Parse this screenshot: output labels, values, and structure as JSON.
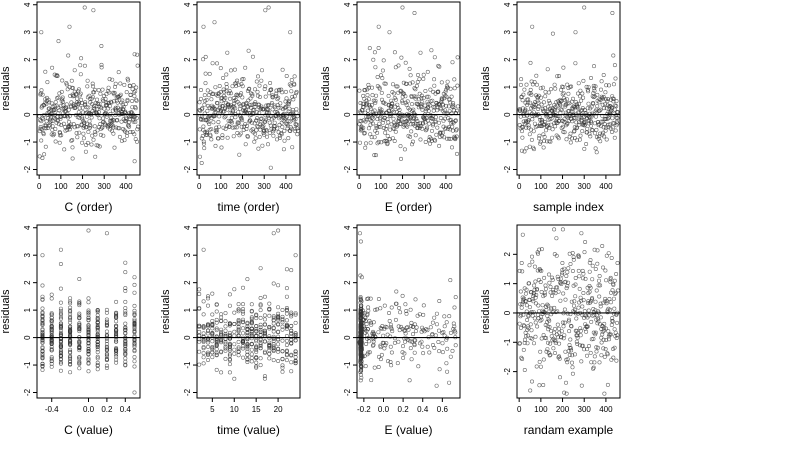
{
  "colors": {
    "points": "#333333",
    "frame": "#000000",
    "background": "#ffffff"
  },
  "chart_data": [
    {
      "type": "scatter",
      "xlabel": "C (order)",
      "ylabel": "residuals",
      "x_kind": "order",
      "xlim": [
        -10,
        465
      ],
      "ylim": [
        -2.2,
        4.1
      ],
      "xticks": [
        0,
        100,
        200,
        300,
        400
      ],
      "yticks": [
        -2,
        -1,
        0,
        1,
        2,
        3,
        4
      ],
      "hline": 0,
      "n_points": 460,
      "outliers": [
        [
          10,
          3.0
        ],
        [
          140,
          3.2
        ],
        [
          210,
          3.9
        ],
        [
          250,
          3.8
        ],
        [
          440,
          2.2
        ],
        [
          440,
          -1.7
        ]
      ]
    },
    {
      "type": "scatter",
      "xlabel": "time (order)",
      "ylabel": "residuals",
      "x_kind": "order",
      "xlim": [
        -10,
        465
      ],
      "ylim": [
        -2.2,
        4.1
      ],
      "xticks": [
        0,
        100,
        200,
        300,
        400
      ],
      "yticks": [
        -2,
        -1,
        0,
        1,
        2,
        3,
        4
      ],
      "hline": 0,
      "n_points": 460,
      "outliers": [
        [
          20,
          3.2
        ],
        [
          305,
          3.8
        ],
        [
          320,
          3.9
        ],
        [
          420,
          3.0
        ],
        [
          30,
          2.1
        ]
      ]
    },
    {
      "type": "scatter",
      "xlabel": "E (order)",
      "ylabel": "residuals",
      "x_kind": "order",
      "xlim": [
        -10,
        465
      ],
      "ylim": [
        -2.2,
        4.1
      ],
      "xticks": [
        0,
        100,
        200,
        300,
        400
      ],
      "yticks": [
        -2,
        -1,
        0,
        1,
        2,
        3,
        4
      ],
      "hline": 0,
      "n_points": 460,
      "outliers": [
        [
          90,
          3.2
        ],
        [
          200,
          3.9
        ],
        [
          255,
          3.7
        ],
        [
          140,
          3.0
        ]
      ]
    },
    {
      "type": "scatter",
      "xlabel": "sample index",
      "ylabel": "residuals",
      "x_kind": "order",
      "xlim": [
        -10,
        465
      ],
      "ylim": [
        -2.2,
        4.1
      ],
      "xticks": [
        0,
        100,
        200,
        300,
        400
      ],
      "yticks": [
        -2,
        -1,
        0,
        1,
        2,
        3,
        4
      ],
      "hline": 0,
      "n_points": 460,
      "outliers": [
        [
          60,
          3.2
        ],
        [
          300,
          3.9
        ],
        [
          430,
          3.7
        ],
        [
          260,
          3.0
        ]
      ]
    },
    {
      "type": "scatter",
      "xlabel": "C (value)",
      "ylabel": "residuals",
      "x_kind": "discrete",
      "xlim": [
        -0.56,
        0.56
      ],
      "ylim": [
        -2.2,
        4.1
      ],
      "xticks": [
        -0.4,
        0.0,
        0.2,
        0.4
      ],
      "yticks": [
        -2,
        -1,
        0,
        1,
        2,
        3,
        4
      ],
      "hline": 0,
      "n_points": 460,
      "discrete_x": [
        -0.5,
        -0.4,
        -0.3,
        -0.2,
        -0.1,
        0.0,
        0.1,
        0.2,
        0.3,
        0.4,
        0.5
      ],
      "outliers": [
        [
          -0.5,
          3.0
        ],
        [
          -0.3,
          3.2
        ],
        [
          0.0,
          3.9
        ],
        [
          0.2,
          3.8
        ],
        [
          0.5,
          2.2
        ],
        [
          0.5,
          -2.0
        ]
      ]
    },
    {
      "type": "scatter",
      "xlabel": "time (value)",
      "ylabel": "residuals",
      "x_kind": "discrete",
      "xlim": [
        1.5,
        25
      ],
      "ylim": [
        -2.2,
        4.1
      ],
      "xticks": [
        5,
        10,
        15,
        20
      ],
      "yticks": [
        -2,
        -1,
        0,
        1,
        2,
        3,
        4
      ],
      "hline": 0,
      "n_points": 460,
      "discrete_x": [
        2,
        3,
        4,
        5,
        6,
        7,
        8,
        9,
        10,
        11,
        12,
        13,
        14,
        15,
        16,
        17,
        18,
        19,
        20,
        21,
        22,
        23,
        24
      ],
      "outliers": [
        [
          3,
          3.2
        ],
        [
          19,
          3.8
        ],
        [
          20,
          3.9
        ],
        [
          24,
          3.0
        ]
      ]
    },
    {
      "type": "scatter",
      "xlabel": "E (value)",
      "ylabel": "residuals",
      "x_kind": "skewed",
      "xlim": [
        -0.27,
        0.78
      ],
      "ylim": [
        -2.2,
        4.1
      ],
      "xticks": [
        -0.2,
        0.0,
        0.2,
        0.4,
        0.6
      ],
      "yticks": [
        -2,
        -1,
        0,
        1,
        2,
        3,
        4
      ],
      "hline": 0,
      "n_points": 460,
      "outliers": [
        [
          -0.24,
          3.8
        ],
        [
          -0.23,
          3.5
        ],
        [
          -0.22,
          2.2
        ],
        [
          -0.23,
          -1.2
        ]
      ]
    },
    {
      "type": "scatter",
      "xlabel": "randam example",
      "ylabel": "residuals",
      "x_kind": "random",
      "xlim": [
        -10,
        465
      ],
      "ylim": [
        -2.9,
        3.0
      ],
      "xticks": [
        0,
        100,
        200,
        300,
        400
      ],
      "yticks": [
        -2,
        -1,
        0,
        1,
        2
      ],
      "hline": 0,
      "n_points": 460,
      "outliers": []
    }
  ]
}
